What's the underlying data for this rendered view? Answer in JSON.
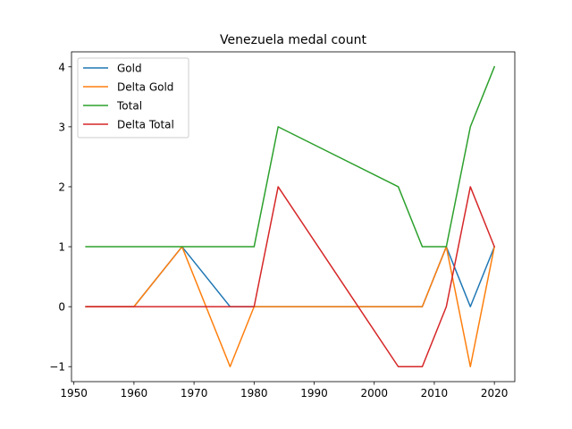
{
  "chart_data": {
    "type": "line",
    "title": "Venezuela medal count",
    "xlabel": "",
    "ylabel": "",
    "x": [
      1952,
      1960,
      1968,
      1976,
      1980,
      1984,
      2004,
      2008,
      2012,
      2016,
      2020
    ],
    "xlim": [
      1949.6,
      2023.4
    ],
    "ylim": [
      -1.25,
      4.25
    ],
    "xticks": [
      1950,
      1960,
      1970,
      1980,
      1990,
      2000,
      2010,
      2020
    ],
    "yticks": [
      -1,
      0,
      1,
      2,
      3,
      4
    ],
    "ytick_labels": [
      "−1",
      "0",
      "1",
      "2",
      "3",
      "4"
    ],
    "grid": false,
    "legend_position": "upper-left",
    "series": [
      {
        "name": "Gold",
        "color": "#1f77b4",
        "values": [
          0,
          0,
          1,
          0,
          0,
          0,
          0,
          0,
          1,
          0,
          1
        ]
      },
      {
        "name": "Delta Gold",
        "color": "#ff7f0e",
        "values": [
          0,
          0,
          1,
          -1,
          0,
          0,
          0,
          0,
          1,
          -1,
          1
        ]
      },
      {
        "name": "Total",
        "color": "#2ca02c",
        "values": [
          1,
          1,
          1,
          1,
          1,
          3,
          2,
          1,
          1,
          3,
          4
        ]
      },
      {
        "name": "Delta Total",
        "color": "#d62728",
        "values": [
          0,
          0,
          0,
          0,
          0,
          2,
          -1,
          -1,
          0,
          2,
          1
        ]
      }
    ]
  }
}
